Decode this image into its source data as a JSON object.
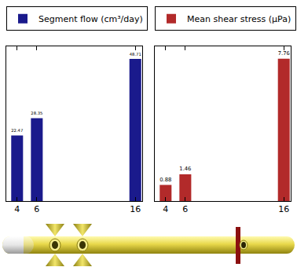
{
  "chart_data": [
    {
      "type": "bar",
      "x": [
        4,
        6,
        16
      ],
      "series": [
        {
          "name": "Segment flow (cm³/day)",
          "color": "#1a1a8c",
          "values": [
            22.47,
            28.35,
            48.71
          ]
        }
      ],
      "xlim": [
        2.9,
        16.7
      ],
      "xticks": [
        4,
        6,
        16
      ],
      "ylim": [
        0,
        53
      ],
      "grid": false,
      "legend": "top left",
      "data_labels": true,
      "tick_labels": "x"
    },
    {
      "type": "bar",
      "x": [
        4,
        6,
        16
      ],
      "series": [
        {
          "name": "Mean shear stress (μPa)",
          "color": "#b22a2a",
          "values": [
            0.88,
            1.46,
            7.76
          ]
        }
      ],
      "xlim": [
        2.9,
        16.7
      ],
      "xticks": [
        4,
        6,
        16
      ],
      "ylim": [
        0,
        8.44
      ],
      "grid": false,
      "legend": "top left",
      "data_labels": true,
      "tick_labels": "x"
    }
  ]
}
